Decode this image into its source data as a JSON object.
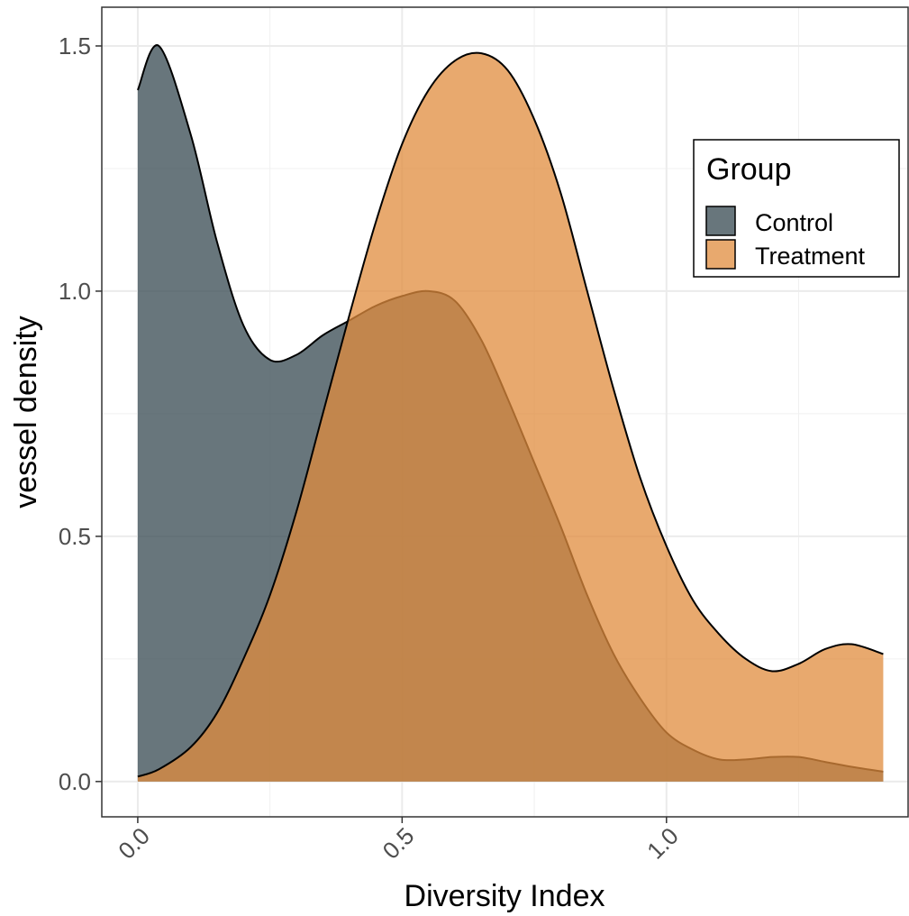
{
  "chart_data": {
    "type": "density",
    "xlabel": "Diversity Index",
    "ylabel": "vessel density",
    "legend_title": "Group",
    "legend": "right-top",
    "grid": true,
    "x": [
      0,
      0.04,
      0.1,
      0.15,
      0.2,
      0.25,
      0.3,
      0.35,
      0.4,
      0.45,
      0.5,
      0.55,
      0.6,
      0.65,
      0.7,
      0.75,
      0.8,
      0.85,
      0.9,
      0.95,
      1.0,
      1.05,
      1.1,
      1.15,
      1.2,
      1.25,
      1.3,
      1.35,
      1.41
    ],
    "series": [
      {
        "name": "Control",
        "color": "#3d4f57",
        "values": [
          1.41,
          1.5,
          1.32,
          1.1,
          0.93,
          0.86,
          0.87,
          0.91,
          0.94,
          0.97,
          0.99,
          1.0,
          0.98,
          0.9,
          0.78,
          0.65,
          0.52,
          0.38,
          0.26,
          0.17,
          0.1,
          0.065,
          0.045,
          0.045,
          0.05,
          0.05,
          0.04,
          0.03,
          0.02
        ]
      },
      {
        "name": "Treatment",
        "color": "#e08c3e",
        "values": [
          0.01,
          0.025,
          0.07,
          0.14,
          0.25,
          0.38,
          0.55,
          0.75,
          0.95,
          1.14,
          1.3,
          1.41,
          1.47,
          1.485,
          1.45,
          1.35,
          1.2,
          1.0,
          0.8,
          0.62,
          0.48,
          0.37,
          0.3,
          0.25,
          0.225,
          0.24,
          0.27,
          0.28,
          0.26
        ]
      }
    ],
    "xlim": [
      -0.068,
      1.457
    ],
    "xticks": [
      {
        "value": 0,
        "label": "0.0"
      },
      0.5,
      {
        "value": 1,
        "label": "1.0"
      }
    ],
    "ylim": [
      -0.072,
      1.579
    ],
    "yticks": [
      {
        "value": 0,
        "label": "0.0"
      },
      0.5,
      {
        "value": 1,
        "label": "1.0"
      },
      1.5
    ]
  }
}
